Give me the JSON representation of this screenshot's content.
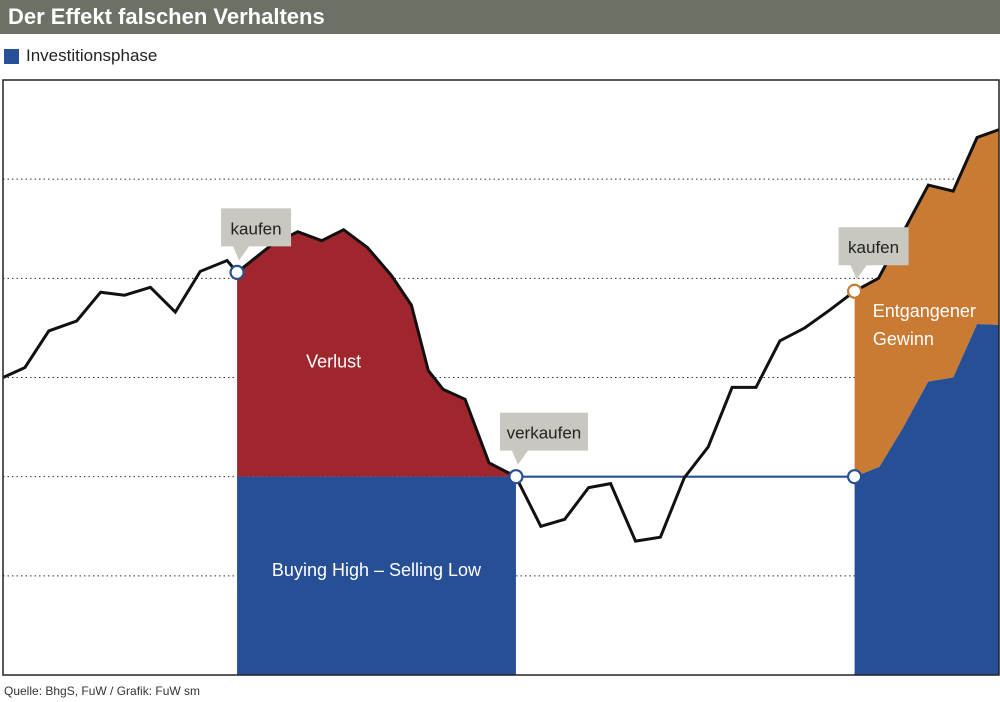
{
  "header": {
    "title": "Der Effekt falschen Verhaltens"
  },
  "legend": {
    "label": "Investitionsphase",
    "color": "#274f96"
  },
  "source": "Quelle: BhgS, FuW / Grafik: FuW sm",
  "colors": {
    "investment": "#274f96",
    "loss": "#a0262e",
    "missed_gain": "#c97b33",
    "line": "#111111",
    "callout": "#c8c8c0",
    "title_bg": "#6b7164"
  },
  "chart_data": {
    "type": "line",
    "title": "Der Effekt falschen Verhaltens",
    "xlabel": "",
    "ylabel": "",
    "x_range": [
      0,
      100
    ],
    "y_range": [
      0,
      6
    ],
    "grid": {
      "y_dotted": [
        1,
        2,
        3,
        4,
        5
      ]
    },
    "series": [
      {
        "name": "Kursverlauf",
        "points": [
          [
            0,
            3.0
          ],
          [
            2.2,
            3.1
          ],
          [
            4.6,
            3.47
          ],
          [
            7.4,
            3.57
          ],
          [
            9.8,
            3.86
          ],
          [
            12.2,
            3.83
          ],
          [
            14.8,
            3.91
          ],
          [
            17.3,
            3.66
          ],
          [
            19.8,
            4.07
          ],
          [
            22.5,
            4.18
          ],
          [
            23.5,
            4.06
          ],
          [
            27.0,
            4.34
          ],
          [
            29.6,
            4.47
          ],
          [
            32.0,
            4.38
          ],
          [
            34.2,
            4.49
          ],
          [
            36.6,
            4.31
          ],
          [
            39.0,
            4.03
          ],
          [
            41.0,
            3.73
          ],
          [
            42.7,
            3.07
          ],
          [
            44.2,
            2.88
          ],
          [
            46.4,
            2.78
          ],
          [
            48.8,
            2.14
          ],
          [
            51.5,
            2.0
          ],
          [
            54.0,
            1.5
          ],
          [
            56.4,
            1.57
          ],
          [
            58.8,
            1.89
          ],
          [
            61.0,
            1.93
          ],
          [
            63.5,
            1.35
          ],
          [
            66.0,
            1.39
          ],
          [
            68.4,
            1.99
          ],
          [
            70.8,
            2.3
          ],
          [
            73.2,
            2.9
          ],
          [
            75.6,
            2.9
          ],
          [
            78.0,
            3.37
          ],
          [
            80.5,
            3.5
          ],
          [
            83.0,
            3.68
          ],
          [
            85.5,
            3.87
          ],
          [
            87.9,
            4.0
          ],
          [
            90.4,
            4.47
          ],
          [
            92.9,
            4.94
          ],
          [
            95.4,
            4.88
          ],
          [
            97.8,
            5.42
          ],
          [
            100,
            5.5
          ]
        ]
      }
    ],
    "regions": [
      {
        "name": "Buying High – Selling Low",
        "x_from": 23.5,
        "x_to": 51.5,
        "y_from": 0,
        "y_to": 2.0
      },
      {
        "name": "Verlust",
        "x_from": 23.5,
        "x_to": 51.5,
        "y_base": 2.0,
        "bounded_by": "Kursverlauf"
      },
      {
        "name": "Investitionsphase (rechts)",
        "x_from": 85.5,
        "x_to": 100,
        "y_from": 0,
        "top": [
          [
            85.5,
            2.0
          ],
          [
            88.0,
            2.1
          ],
          [
            90.4,
            2.5
          ],
          [
            92.9,
            2.96
          ],
          [
            95.4,
            3.0
          ],
          [
            97.8,
            3.54
          ],
          [
            100,
            3.53
          ]
        ]
      },
      {
        "name": "Entgangener Gewinn",
        "x_from": 85.5,
        "x_to": 100,
        "between": [
          "Investitionsphase (rechts)",
          "Kursverlauf"
        ]
      }
    ],
    "reference_line": {
      "name": "Verkaufsniveau",
      "y": 2.0,
      "x_from": 51.5,
      "x_to": 85.5
    },
    "markers": [
      {
        "label": "kaufen",
        "x": 23.5,
        "y": 4.06,
        "color": "#274f96"
      },
      {
        "label": "verkaufen",
        "x": 51.5,
        "y": 2.0,
        "color": "#274f96"
      },
      {
        "label": "kaufen",
        "x": 85.5,
        "y": 3.87,
        "color": "#c97b33"
      },
      {
        "label": "",
        "x": 85.5,
        "y": 2.0,
        "color": "#274f96"
      }
    ],
    "annotations": [
      {
        "text": "Verlust",
        "x": 33.2,
        "y": 3.1,
        "color": "#ffffff"
      },
      {
        "text": "Buying High – Selling Low",
        "x": 37.5,
        "y": 1.0,
        "color": "#ffffff"
      },
      {
        "text": "Entgangener",
        "x": 92.5,
        "y": 3.61,
        "color": "#ffffff"
      },
      {
        "text": "Gewinn",
        "x": 90.4,
        "y": 3.33,
        "color": "#ffffff"
      }
    ]
  }
}
